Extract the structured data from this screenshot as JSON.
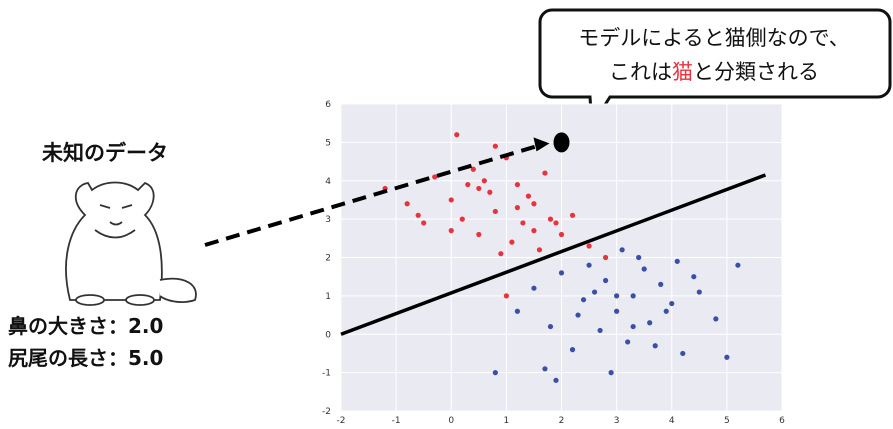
{
  "unknown_label": "未知のデータ",
  "features": [
    "鼻の大きさ：2.0",
    "尻尾の長さ：5.0"
  ],
  "bubble": {
    "line1": "モデルによると猫側なので、",
    "line2_pre": "これは",
    "line2_highlight": "猫",
    "line2_post": "と分類される"
  },
  "chart_data": {
    "type": "scatter",
    "xlim": [
      -2,
      6
    ],
    "ylim": [
      -2,
      6
    ],
    "xticks": [
      -2,
      -1,
      0,
      1,
      2,
      3,
      4,
      5,
      6
    ],
    "yticks": [
      -2,
      -1,
      0,
      1,
      2,
      3,
      4,
      5,
      6
    ],
    "grid": true,
    "series": [
      {
        "color": "#e8323c",
        "x": [
          -1.2,
          -0.8,
          -0.5,
          -0.3,
          0,
          0.2,
          0.4,
          0.5,
          0.7,
          0.8,
          1,
          1.1,
          1.2,
          1.3,
          1.5,
          1.6,
          1.8,
          2,
          2.2,
          2.5,
          0.1,
          0.6,
          0.9,
          1.4,
          1.7,
          -0.6,
          0.3,
          1.0,
          1.9,
          0.8,
          2.8,
          0.0,
          1.2,
          0.5,
          1.5
        ],
        "y": [
          3.8,
          3.4,
          2.9,
          4.1,
          3.5,
          3.0,
          4.3,
          2.6,
          3.7,
          3.2,
          4.6,
          2.4,
          3.9,
          2.9,
          3.4,
          2.2,
          3.0,
          2.6,
          3.1,
          2.3,
          5.2,
          4.0,
          2.1,
          3.6,
          4.2,
          3.1,
          3.9,
          1.0,
          2.9,
          4.9,
          2.0,
          2.7,
          3.3,
          3.8,
          2.7
        ]
      },
      {
        "color": "#3a4fa8",
        "x": [
          1.2,
          1.5,
          1.8,
          2.0,
          2.2,
          2.4,
          2.5,
          2.7,
          2.8,
          3.0,
          3.1,
          3.2,
          3.3,
          3.5,
          3.6,
          3.8,
          4.0,
          4.2,
          4.5,
          4.8,
          5.2,
          2.9,
          3.4,
          2.6,
          3.7,
          4.1,
          1.7,
          2.3,
          3.0,
          3.9,
          4.4,
          0.8,
          1.9,
          5.0,
          3.3
        ],
        "y": [
          0.6,
          1.2,
          0.2,
          1.6,
          -0.4,
          0.9,
          1.8,
          0.1,
          1.4,
          0.6,
          2.2,
          -0.2,
          1.0,
          1.7,
          0.3,
          1.3,
          0.8,
          -0.5,
          1.1,
          0.4,
          1.8,
          -1.0,
          2.0,
          1.1,
          -0.3,
          1.9,
          -0.9,
          0.5,
          1.0,
          0.6,
          1.5,
          -1.0,
          -1.2,
          -0.6,
          0.2
        ]
      }
    ],
    "boundary": {
      "x": [
        -2,
        5.7
      ],
      "y": [
        0,
        4.15
      ]
    },
    "new_point": {
      "x": 2,
      "y": 5
    }
  }
}
